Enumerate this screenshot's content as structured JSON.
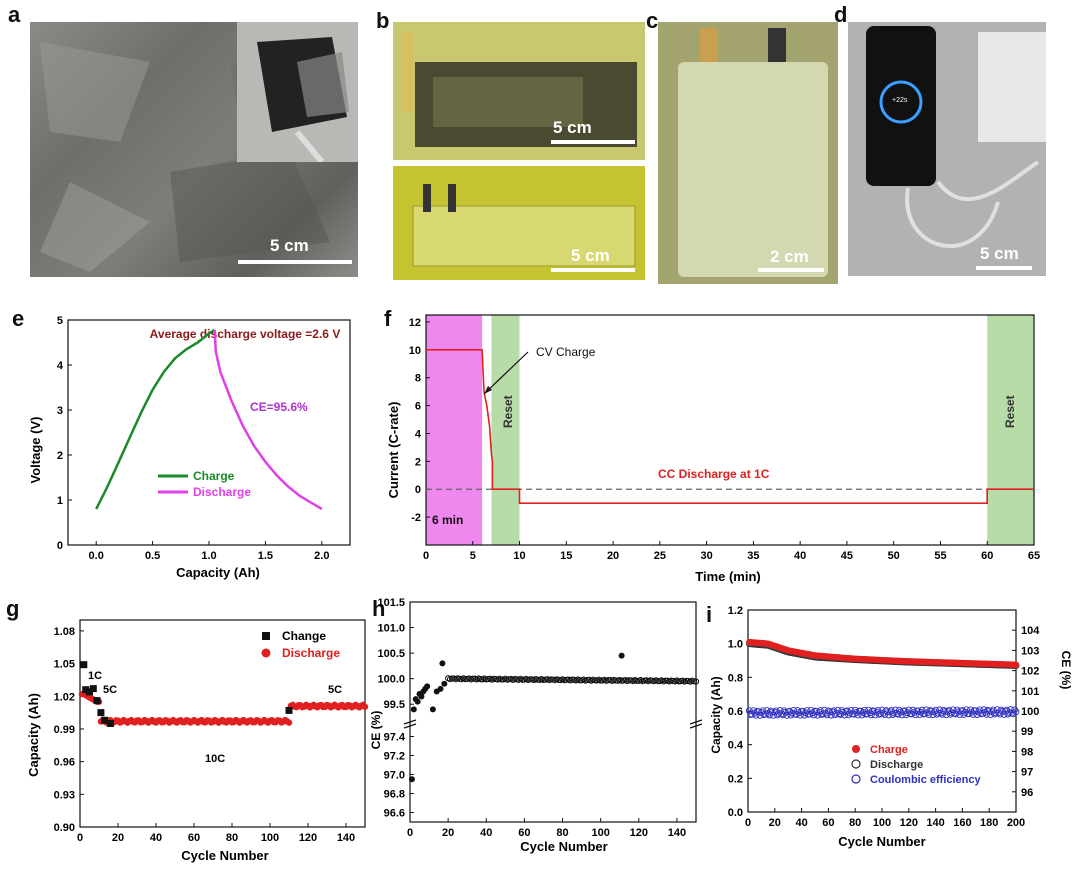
{
  "panels": {
    "a": {
      "letter": "a",
      "scale": "5 cm"
    },
    "b": {
      "letter": "b",
      "scale_top": "5 cm",
      "scale_bottom": "5 cm"
    },
    "c": {
      "letter": "c",
      "scale": "2 cm"
    },
    "d": {
      "letter": "d",
      "scale": "5 cm",
      "phone_text": "+22s"
    },
    "e": {
      "letter": "e"
    },
    "f": {
      "letter": "f"
    },
    "g": {
      "letter": "g"
    },
    "h": {
      "letter": "h"
    },
    "i": {
      "letter": "i"
    }
  },
  "chart_data": [
    {
      "id": "e",
      "type": "line",
      "xlabel": "Capacity (Ah)",
      "ylabel": "Voltage (V)",
      "xlim": [
        -0.25,
        2.25
      ],
      "ylim": [
        0,
        5
      ],
      "xticks": [
        0.0,
        0.5,
        1.0,
        1.5,
        2.0
      ],
      "xtick_labels": [
        "0.0",
        "0.5",
        "1.0",
        "1.5",
        "2.0"
      ],
      "yticks": [
        0,
        1,
        2,
        3,
        4,
        5
      ],
      "annotations": [
        "Average discharge voltage =2.6 V",
        "CE=95.6%"
      ],
      "legend_position": "bottom-left",
      "colors": {
        "charge": "#1a8a2a",
        "discharge": "#e040e8",
        "annotation1": "#8b1a1a",
        "annotation2": "#b030d0"
      },
      "series": [
        {
          "name": "Charge",
          "x": [
            0.0,
            0.1,
            0.2,
            0.3,
            0.4,
            0.5,
            0.6,
            0.7,
            0.8,
            0.9,
            1.0,
            1.05
          ],
          "y": [
            0.8,
            1.3,
            1.85,
            2.4,
            2.95,
            3.45,
            3.85,
            4.15,
            4.35,
            4.5,
            4.7,
            4.78
          ]
        },
        {
          "name": "Discharge",
          "x": [
            1.05,
            1.06,
            1.1,
            1.2,
            1.3,
            1.4,
            1.5,
            1.6,
            1.7,
            1.8,
            1.9,
            2.0
          ],
          "y": [
            4.78,
            4.3,
            3.85,
            3.2,
            2.65,
            2.2,
            1.85,
            1.55,
            1.3,
            1.1,
            0.95,
            0.8
          ]
        }
      ]
    },
    {
      "id": "f",
      "type": "line",
      "xlabel": "Time (min)",
      "ylabel": "Current (C-rate)",
      "xlim": [
        0,
        65
      ],
      "ylim": [
        -4,
        12.5
      ],
      "xticks": [
        0,
        5,
        10,
        15,
        20,
        25,
        30,
        35,
        40,
        45,
        50,
        55,
        60,
        65
      ],
      "yticks": [
        -2,
        0,
        2,
        4,
        6,
        8,
        10,
        12
      ],
      "regions": [
        {
          "x": [
            0,
            6
          ],
          "color": "#ee88ee",
          "label": "6 min"
        },
        {
          "x": [
            7,
            10
          ],
          "color": "#b8dca8",
          "label": "Reset"
        },
        {
          "x": [
            60,
            65
          ],
          "color": "#b8dca8",
          "label": "Reset"
        }
      ],
      "annotations": [
        "CV Charge",
        "CC Discharge at 1C"
      ],
      "colors": {
        "line": "#e02020",
        "zero": "#666666",
        "annotation2": "#e02020"
      },
      "series": [
        {
          "x": [
            0,
            6,
            6.2,
            6.5,
            6.8,
            7,
            7.1,
            7.1,
            10,
            10,
            60,
            60,
            65
          ],
          "y": [
            10,
            10,
            7,
            6,
            4.5,
            2.5,
            2,
            0,
            0,
            -1,
            -1,
            0,
            0
          ]
        }
      ]
    },
    {
      "id": "g",
      "type": "scatter",
      "xlabel": "Cycle Number",
      "ylabel": "Capacity (Ah)",
      "xlim": [
        0,
        150
      ],
      "ylim": [
        0.9,
        1.09
      ],
      "xticks": [
        0,
        20,
        40,
        60,
        80,
        100,
        120,
        140
      ],
      "yticks": [
        0.9,
        0.93,
        0.96,
        0.99,
        1.02,
        1.05,
        1.08
      ],
      "ytick_labels": [
        "0.90",
        "0.93",
        "0.96",
        "0.99",
        "1.02",
        "1.05",
        "1.08"
      ],
      "annotations": [
        "1C",
        "5C",
        "10C",
        "5C"
      ],
      "legend_position": "top-right",
      "colors": {
        "charge": "#111111",
        "discharge": "#e02020"
      },
      "series": [
        {
          "name": "Change",
          "x": [
            2,
            3,
            5,
            7,
            9,
            11,
            13,
            16,
            110
          ],
          "y": [
            1.049,
            1.026,
            1.024,
            1.027,
            1.016,
            1.005,
            0.998,
            0.995,
            1.007
          ]
        },
        {
          "name": "Discharge",
          "segments": [
            {
              "x_range": [
                1,
                10
              ],
              "y": [
                1.022,
                1.022,
                1.021,
                1.02,
                1.019,
                1.018,
                1.017,
                1.016,
                1.015,
                1.015
              ]
            },
            {
              "x_range": [
                11,
                110
              ],
              "y_start": 0.997,
              "y_end": 0.997
            },
            {
              "x_range": [
                111,
                150
              ],
              "y_start": 1.011,
              "y_end": 1.011
            }
          ]
        }
      ]
    },
    {
      "id": "h",
      "type": "scatter",
      "xlabel": "Cycle Number",
      "ylabel": "CE (%)",
      "xlim": [
        0,
        150
      ],
      "ylim": [
        96.5,
        101.5
      ],
      "xticks": [
        0,
        20,
        40,
        60,
        80,
        100,
        120,
        140
      ],
      "yticks": [
        96.6,
        96.8,
        97.0,
        97.2,
        97.4,
        99.5,
        100.0,
        100.5,
        101.0,
        101.5
      ],
      "ytick_labels": [
        "96.6",
        "96.8",
        "97.0",
        "97.2",
        "97.4",
        "99.5",
        "100.0",
        "100.5",
        "101.0",
        "101.5"
      ],
      "y_axis_break": [
        97.5,
        99.3
      ],
      "colors": {
        "points": "#111111"
      },
      "series": [
        {
          "x": [
            1,
            2,
            3,
            4,
            5,
            6,
            7,
            8,
            9,
            12,
            14,
            16,
            17,
            18
          ],
          "y": [
            96.95,
            99.4,
            99.6,
            99.55,
            99.7,
            99.65,
            99.75,
            99.8,
            99.85,
            99.4,
            99.75,
            99.8,
            100.3,
            99.9
          ]
        },
        {
          "x_range": [
            20,
            150
          ],
          "y_start": 100.0,
          "y_end": 99.95
        },
        {
          "x": [
            111
          ],
          "y": [
            100.45
          ]
        }
      ]
    },
    {
      "id": "i",
      "type": "scatter",
      "xlabel": "Cycle Number",
      "ylabel": "Capacity (Ah)",
      "ylabel_right": "CE (%)",
      "xlim": [
        0,
        200
      ],
      "ylim": [
        0,
        1.2
      ],
      "ylim_right": [
        95,
        105
      ],
      "xticks": [
        0,
        20,
        40,
        60,
        80,
        100,
        120,
        140,
        160,
        180,
        200
      ],
      "yticks": [
        0.0,
        0.2,
        0.4,
        0.6,
        0.8,
        1.0,
        1.2
      ],
      "ytick_labels": [
        "0.0",
        "0.2",
        "0.4",
        "0.6",
        "0.8",
        "1.0",
        "1.2"
      ],
      "yticks_right": [
        96,
        97,
        98,
        99,
        100,
        101,
        102,
        103,
        104
      ],
      "legend_position": "bottom-center",
      "colors": {
        "charge": "#e02020",
        "discharge": "#333333",
        "ce": "#3030c0"
      },
      "series": [
        {
          "name": "Charge",
          "x_range": [
            1,
            200
          ],
          "y_points": [
            [
              0,
              1.01
            ],
            [
              15,
              1.0
            ],
            [
              30,
              0.96
            ],
            [
              50,
              0.93
            ],
            [
              80,
              0.91
            ],
            [
              120,
              0.895
            ],
            [
              160,
              0.885
            ],
            [
              200,
              0.875
            ]
          ]
        },
        {
          "name": "Discharge",
          "x_range": [
            1,
            200
          ],
          "y_points": [
            [
              0,
              1.0
            ],
            [
              15,
              0.99
            ],
            [
              30,
              0.95
            ],
            [
              50,
              0.92
            ],
            [
              80,
              0.905
            ],
            [
              120,
              0.89
            ],
            [
              160,
              0.88
            ],
            [
              200,
              0.87
            ]
          ]
        },
        {
          "name": "Coulombic efficiency",
          "axis": "right",
          "x_range": [
            1,
            200
          ],
          "y_start": 99.9,
          "y_end": 99.95
        }
      ]
    }
  ]
}
